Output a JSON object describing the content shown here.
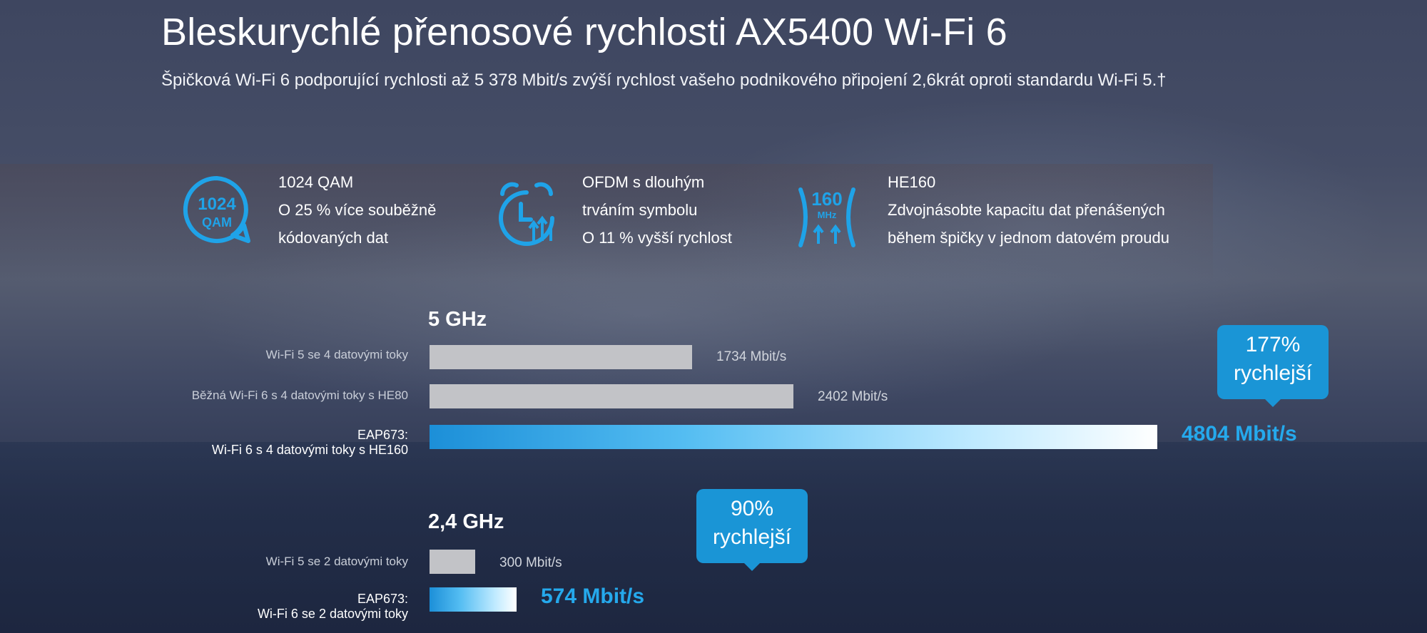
{
  "header": {
    "title": "Bleskurychlé přenosové rychlosti AX5400 Wi-Fi 6",
    "subtitle": "Špičková Wi-Fi 6 podporující rychlosti až 5 378 Mbit/s zvýší rychlost vašeho podnikového připojení 2,6krát oproti standardu Wi-Fi 5.†"
  },
  "features": [
    {
      "icon": "qam-badge-icon",
      "icon_text_top": "1024",
      "icon_text_bottom": "QAM",
      "lines": [
        "1024 QAM",
        "O 25 % více souběžně",
        "kódovaných dat"
      ]
    },
    {
      "icon": "alarm-clock-icon",
      "lines": [
        "OFDM s dlouhým",
        "trváním symbolu",
        "O 11 % vyšší rychlost"
      ]
    },
    {
      "icon": "antenna-160mhz-icon",
      "icon_text_top": "160",
      "icon_text_bottom": "MHz",
      "lines": [
        "HE160",
        "Zdvojnásobte kapacitu dat přenášených",
        "během špičky v jednom datovém proudu"
      ]
    }
  ],
  "colors": {
    "accent": "#1a95d6",
    "accent_text": "#25a9ec",
    "bar_grey": "#c2c3c7"
  },
  "chart_data": [
    {
      "type": "bar",
      "orientation": "horizontal",
      "title": "5 GHz",
      "categories": [
        "Wi-Fi 5 se 4 datovými toky",
        "Běžná Wi-Fi 6 s 4 datovými toky s HE80",
        "EAP673:\nWi-Fi 6 s 4 datovými toky s HE160"
      ],
      "values": [
        1734,
        2402,
        4804
      ],
      "value_labels": [
        "1734 Mbit/s",
        "2402 Mbit/s",
        "4804 Mbit/s"
      ],
      "unit": "Mbit/s",
      "callout": [
        "177%",
        "rychlejší"
      ]
    },
    {
      "type": "bar",
      "orientation": "horizontal",
      "title": "2,4 GHz",
      "categories": [
        "Wi-Fi 5 se 2 datovými toky",
        "EAP673:\nWi-Fi 6 se 2 datovými toky"
      ],
      "values": [
        300,
        574
      ],
      "value_labels": [
        "300 Mbit/s",
        "574 Mbit/s"
      ],
      "unit": "Mbit/s",
      "callout": [
        "90%",
        "rychlejší"
      ]
    }
  ]
}
